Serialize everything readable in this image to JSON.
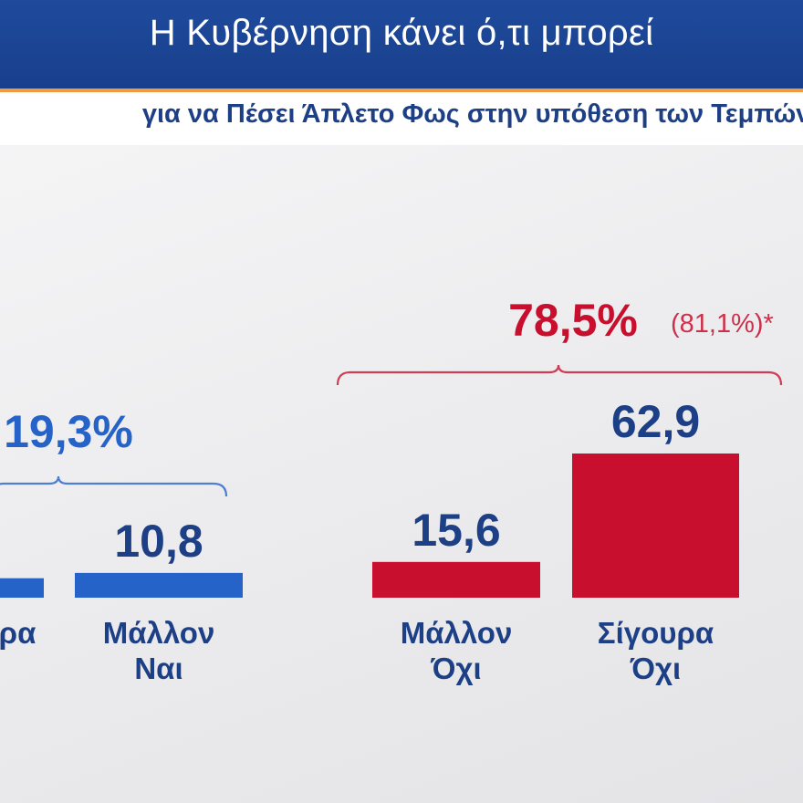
{
  "title": "Η Κυβέρνηση κάνει ό,τι μπορεί",
  "subtitle": "για να Πέσει Άπλετο Φως στην υπόθεση των Τεμπών;",
  "colors": {
    "blue": "#2563c9",
    "red": "#c8102e",
    "navy": "#1c3f86",
    "orange": "#f39a3c"
  },
  "chart_data": {
    "type": "bar",
    "categories": [
      "ρα",
      "Μάλλον Ναι",
      "Μάλλον Όχι",
      "Σίγουρα Όχι"
    ],
    "category_lines": [
      [
        "ρα"
      ],
      [
        "Μάλλον",
        "Ναι"
      ],
      [
        "Μάλλον",
        "Όχι"
      ],
      [
        "Σίγουρα",
        "Όχι"
      ]
    ],
    "values": [
      8.5,
      10.8,
      15.6,
      62.9
    ],
    "value_labels": [
      "",
      "10,8",
      "15,6",
      "62,9"
    ],
    "bar_colors": [
      "#2563c9",
      "#2563c9",
      "#c8102e",
      "#c8102e"
    ],
    "ylim": [
      0,
      62.9
    ],
    "groups": [
      {
        "label": "19,3%",
        "extra": "",
        "color": "#2563c9",
        "text_color": "#2563c9",
        "first": 0,
        "last": 1
      },
      {
        "label": "78,5%",
        "extra": "(81,1%)*",
        "color": "#c8102e",
        "text_color": "#c8102e",
        "first": 2,
        "last": 3
      }
    ]
  }
}
